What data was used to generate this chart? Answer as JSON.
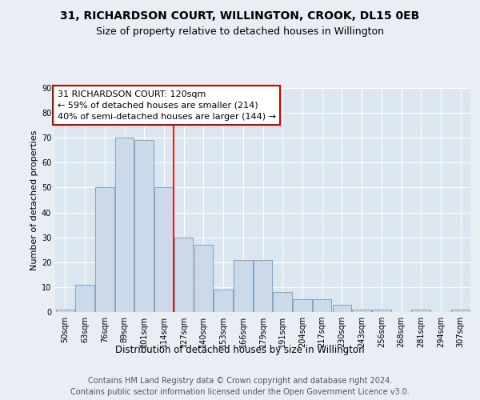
{
  "title": "31, RICHARDSON COURT, WILLINGTON, CROOK, DL15 0EB",
  "subtitle": "Size of property relative to detached houses in Willington",
  "xlabel": "Distribution of detached houses by size in Willington",
  "ylabel": "Number of detached properties",
  "bar_labels": [
    "50sqm",
    "63sqm",
    "76sqm",
    "89sqm",
    "101sqm",
    "114sqm",
    "127sqm",
    "140sqm",
    "153sqm",
    "166sqm",
    "179sqm",
    "191sqm",
    "204sqm",
    "217sqm",
    "230sqm",
    "243sqm",
    "256sqm",
    "268sqm",
    "281sqm",
    "294sqm",
    "307sqm"
  ],
  "bar_values": [
    1,
    11,
    50,
    70,
    69,
    50,
    30,
    27,
    9,
    21,
    21,
    8,
    5,
    5,
    3,
    1,
    1,
    0,
    1,
    0,
    1
  ],
  "bar_color": "#ccd9e8",
  "bar_edge_color": "#7799bb",
  "property_line_bin": 5,
  "annotation_text": "31 RICHARDSON COURT: 120sqm\n← 59% of detached houses are smaller (214)\n40% of semi-detached houses are larger (144) →",
  "annotation_box_color": "#ffffff",
  "annotation_box_edge": "#cc0000",
  "line_color": "#cc0000",
  "ylim": [
    0,
    90
  ],
  "yticks": [
    0,
    10,
    20,
    30,
    40,
    50,
    60,
    70,
    80,
    90
  ],
  "bg_color": "#e8eef4",
  "plot_bg_color": "#dce6f0",
  "grid_color": "#c8d4e0",
  "footer1": "Contains HM Land Registry data © Crown copyright and database right 2024.",
  "footer2": "Contains public sector information licensed under the Open Government Licence v3.0.",
  "title_fontsize": 10,
  "subtitle_fontsize": 9,
  "xlabel_fontsize": 8.5,
  "ylabel_fontsize": 8,
  "tick_fontsize": 7,
  "footer_fontsize": 7,
  "annot_fontsize": 8
}
